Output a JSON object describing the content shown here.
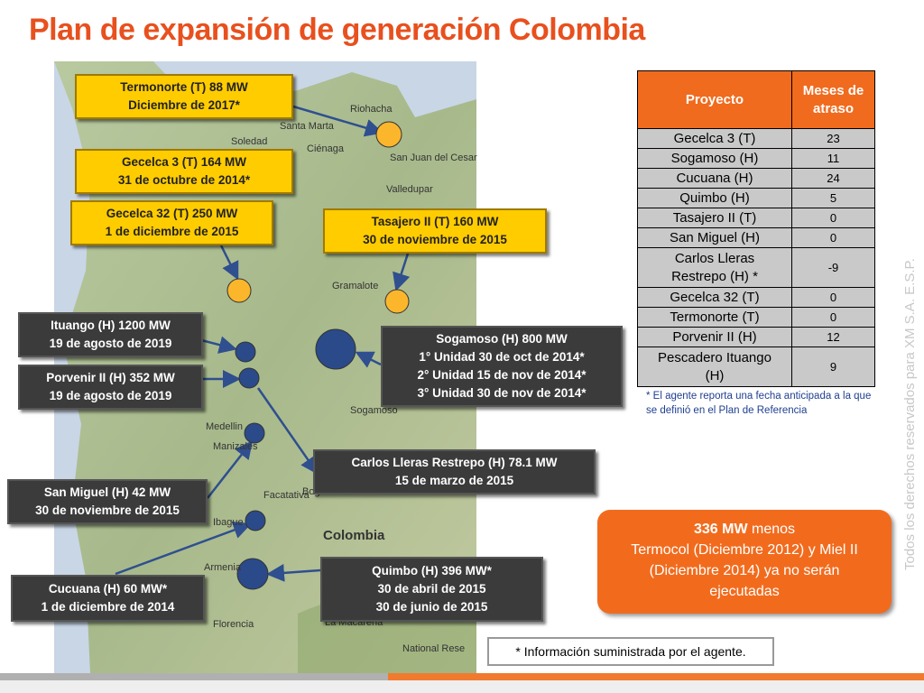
{
  "title": "Plan de expansión de generación Colombia",
  "map": {
    "labels": [
      "Riohacha",
      "Santa Marta",
      "Soledad",
      "Ciénaga",
      "San Juan del Cesar",
      "Valledupar",
      "Gramalote",
      "Sogamoso",
      "Medellin",
      "Manizales",
      "Facatativa",
      "Ibague",
      "Bogota",
      "Colombia",
      "Armenia",
      "Florencia",
      "La Macarena",
      "National Rese"
    ]
  },
  "callouts": [
    {
      "lines": [
        "Termonorte (T) 88 MW",
        "Diciembre de 2017*"
      ]
    },
    {
      "lines": [
        "Gecelca 3 (T) 164 MW",
        "31 de octubre de 2014*"
      ]
    },
    {
      "lines": [
        "Gecelca 32 (T) 250 MW",
        "1 de diciembre de 2015"
      ]
    },
    {
      "lines": [
        "Tasajero II (T) 160 MW",
        "30 de noviembre de 2015"
      ]
    },
    {
      "lines": [
        "Ituango (H) 1200 MW",
        "19 de agosto de 2019"
      ]
    },
    {
      "lines": [
        "Porvenir II (H) 352 MW",
        "19 de agosto de 2019"
      ]
    },
    {
      "lines": [
        "Sogamoso (H) 800 MW",
        "1° Unidad 30 de oct de 2014*",
        "2° Unidad 15 de nov de 2014*",
        "3° Unidad 30 de nov de 2014*"
      ]
    },
    {
      "lines": [
        "Carlos Lleras Restrepo (H) 78.1 MW",
        "15 de marzo de 2015"
      ]
    },
    {
      "lines": [
        "San Miguel (H) 42 MW",
        "30 de noviembre de 2015"
      ]
    },
    {
      "lines": [
        "Quimbo (H)  396 MW*",
        "30 de abril de 2015",
        "30 de junio de 2015"
      ]
    },
    {
      "lines": [
        "Cucuana (H) 60 MW*",
        "1 de diciembre de 2014"
      ]
    }
  ],
  "table": {
    "header": [
      "Proyecto",
      "Meses de atraso"
    ],
    "rows": [
      [
        "Gecelca 3 (T)",
        23
      ],
      [
        "Sogamoso (H)",
        11
      ],
      [
        "Cucuana (H)",
        24
      ],
      [
        "Quimbo (H)",
        5
      ],
      [
        "Tasajero II (T)",
        0
      ],
      [
        "San Miguel (H)",
        0
      ],
      [
        "Carlos Lleras Restrepo (H) *",
        -9
      ],
      [
        "Gecelca 32 (T)",
        0
      ],
      [
        "Termonorte (T)",
        0
      ],
      [
        "Porvenir II (H)",
        12
      ],
      [
        "Pescadero Ituango (H)",
        9
      ]
    ]
  },
  "table_note": "* El agente reporta una fecha anticipada a la que se definió en el Plan de Referencia",
  "summary": {
    "bold": "336 MW",
    "rest": " menos",
    "text": "Termocol (Diciembre 2012) y Miel II (Diciembre 2014) ya no serán ejecutadas"
  },
  "info_note": "* Información suministrada por el agente.",
  "copyright": "Todos los derechos reservados para XM S.A. E.S.P."
}
